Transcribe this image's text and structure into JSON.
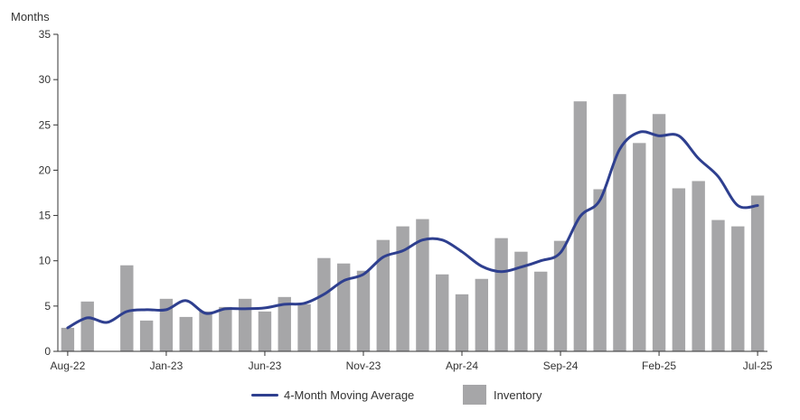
{
  "chart_data": {
    "type": "bar",
    "ylabel": "Months",
    "ylim": [
      0,
      35
    ],
    "yticks": [
      0,
      5,
      10,
      15,
      20,
      25,
      30,
      35
    ],
    "categories": [
      "Aug-22",
      "Sep-22",
      "Oct-22",
      "Nov-22",
      "Dec-22",
      "Jan-23",
      "Feb-23",
      "Mar-23",
      "Apr-23",
      "May-23",
      "Jun-23",
      "Jul-23",
      "Aug-23",
      "Sep-23",
      "Oct-23",
      "Nov-23",
      "Dec-23",
      "Jan-24",
      "Feb-24",
      "Mar-24",
      "Apr-24",
      "May-24",
      "Jun-24",
      "Jul-24",
      "Aug-24",
      "Sep-24",
      "Oct-24",
      "Nov-24",
      "Dec-24",
      "Jan-25",
      "Feb-25",
      "Mar-25",
      "Apr-25",
      "May-25",
      "Jun-25",
      "Jul-25"
    ],
    "x_tick_labels": [
      {
        "index": 0,
        "label": "Aug-22"
      },
      {
        "index": 5,
        "label": "Jan-23"
      },
      {
        "index": 10,
        "label": "Jun-23"
      },
      {
        "index": 15,
        "label": "Nov-23"
      },
      {
        "index": 20,
        "label": "Apr-24"
      },
      {
        "index": 25,
        "label": "Sep-24"
      },
      {
        "index": 30,
        "label": "Feb-25"
      },
      {
        "index": 35,
        "label": "Jul-25"
      }
    ],
    "series": [
      {
        "name": "Inventory",
        "type": "bar",
        "color": "#a6a6a8",
        "values": [
          2.6,
          5.5,
          null,
          9.5,
          3.4,
          5.8,
          3.8,
          4.4,
          4.9,
          5.8,
          4.4,
          6.0,
          5.2,
          10.3,
          9.7,
          8.9,
          12.3,
          13.8,
          14.6,
          8.5,
          6.3,
          8.0,
          12.5,
          11.0,
          8.8,
          12.2,
          27.6,
          17.9,
          28.4,
          23.0,
          26.2,
          18.0,
          18.8,
          14.5,
          13.8,
          17.2
        ]
      },
      {
        "name": "4-Month Moving Average",
        "type": "line",
        "color": "#2e3f8f",
        "values": [
          2.6,
          3.7,
          3.2,
          4.4,
          4.6,
          4.6,
          5.6,
          4.2,
          4.7,
          4.7,
          4.8,
          5.2,
          5.3,
          6.3,
          7.8,
          8.5,
          10.4,
          11.1,
          12.3,
          12.3,
          11.0,
          9.4,
          8.8,
          9.3,
          10.0,
          10.9,
          14.9,
          16.7,
          22.3,
          24.2,
          23.8,
          23.8,
          21.3,
          19.3,
          16.1,
          16.1
        ]
      }
    ],
    "grid": false,
    "legend_position": "bottom-center",
    "colors": {
      "bar": "#a6a6a8",
      "line": "#2e3f8f",
      "axis": "#333333"
    }
  },
  "legend": {
    "line_label": "4-Month Moving Average",
    "bar_label": "Inventory"
  }
}
